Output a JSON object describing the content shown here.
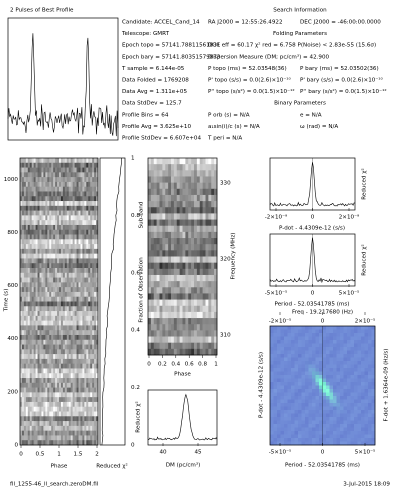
{
  "header": {
    "profile_title": "2 Pulses of Best Profile",
    "search_title": "Search Information"
  },
  "info": {
    "left": [
      "Candidate: ACCEL_Cand_14",
      "Telescope: GMRT",
      "Epoch topo = 57141.78811561831",
      "Epoch bary = 57141.80351579873",
      "T sample = 6.144e-05",
      "Data Folded = 1769208",
      "Data Avg = 1.311e+05",
      "Data StdDev = 125.7",
      "Profile Bins = 64",
      "Profile Avg = 3.625e+10",
      "Profile StdDev = 6.607e+04"
    ],
    "rows": [
      [
        "RA J2000 = 12:55:26.4922",
        "DEC J2000 = -46:00:00.0000"
      ],
      [
        "Folding Parameters"
      ],
      [
        "DOF eff = 60.17  χ² red = 6.758  P(Noise) < 2.83e-55 (15.6σ)"
      ],
      [
        "Dispersion Measure (DM; pc/cm³) = 42.900"
      ],
      [
        "P topo (ms) = 52.03548(36)",
        "P bary (ms) = 52.03502(36)"
      ],
      [
        "P' topo (s/s) = 0.0(2.6)×10⁻¹⁰",
        "P' bary (s/s) = 0.0(2.6)×10⁻¹⁰"
      ],
      [
        "P'' topo (s/s²) = 0.0(1.5)×10⁻¹²",
        "P'' bary (s/s²) = 0.0(1.5)×10⁻¹²"
      ],
      [
        "Binary Parameters"
      ],
      [
        "P orb (s) = N/A",
        "e = N/A"
      ],
      [
        "a₁sin(i)/c (s) = N/A",
        "ω (rad) = N/A"
      ],
      [
        "T peri = N/A"
      ]
    ]
  },
  "panels": {
    "time_phase": {
      "y_label": "Time (s)",
      "y_ticks": [
        0,
        200,
        400,
        600,
        800,
        1000
      ],
      "x_label": "Phase",
      "x_ticks": [
        0,
        0.5,
        1,
        1.5,
        2
      ]
    },
    "chi2": {
      "x_label": "Reduced χ²",
      "y2_label": "Fraction of Observation",
      "y2_ticks": [
        0,
        0.2,
        0.4,
        0.6,
        0.8,
        1
      ]
    },
    "subbands": {
      "y_label": "Sub-band",
      "y2_label": "Frequency (MHz)",
      "y2_ticks": [
        310,
        320,
        330
      ],
      "x_label": "Phase",
      "x_ticks": [
        0,
        0.2,
        0.4,
        0.6,
        0.8,
        1
      ]
    },
    "dm": {
      "y_label": "Reduced χ²",
      "x_label": "DM (pc/cm³)",
      "x_ticks": [
        40,
        45
      ]
    },
    "pdot": {
      "y_label": "Reduced χ²",
      "x_label": "P-dot - 4.4309e-12 (s/s)",
      "x_ticks": [
        "-2×10⁻⁹",
        "0",
        "2×10⁻⁹"
      ]
    },
    "period": {
      "y_label": "Reduced χ²",
      "x_label": "Period - 52.03541785 (ms)",
      "x_ticks": [
        "-5×10⁻⁵",
        "0",
        "5×10⁻⁵"
      ]
    },
    "pdot_period": {
      "top_label": "Freq - 19.217680 (Hz)",
      "x_label": "Period - 52.03541785 (ms)",
      "y_label": "P-dot - 4.4309e-12 (s/s)",
      "y2_label": "F-dot + 1.6364e-09 (Hz/s)",
      "x_ticks": [
        "-5×10⁻⁵",
        "0",
        "5×10⁻⁵"
      ],
      "top_ticks": [
        "-2×10⁻⁵",
        "0",
        "2×10⁻⁵"
      ]
    }
  },
  "footer": {
    "file": "fil_1255-46_ll_search.zeroDM.fil",
    "date": "3-Jul-2015 18:09"
  }
}
